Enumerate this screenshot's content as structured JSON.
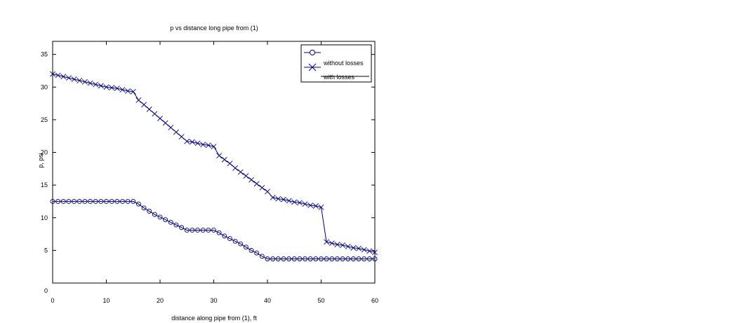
{
  "chart_data": {
    "type": "line",
    "title": "p vs distance long pipe from (1)",
    "xlabel": "distance along pipe from (1), ft",
    "ylabel": "p, psi",
    "xlim": [
      0,
      60
    ],
    "ylim": [
      0,
      37
    ],
    "xticks": [
      0,
      10,
      20,
      30,
      40,
      50,
      60
    ],
    "yticks": [
      0,
      5,
      10,
      15,
      20,
      25,
      30,
      35
    ],
    "grid": false,
    "legend_position": "top-right",
    "line_color": "#000080",
    "series": [
      {
        "name": "without losses",
        "marker": "circle",
        "x": [
          0,
          1,
          2,
          3,
          4,
          5,
          6,
          7,
          8,
          9,
          10,
          11,
          12,
          13,
          14,
          15,
          16,
          17,
          18,
          19,
          20,
          21,
          22,
          23,
          24,
          25,
          26,
          27,
          28,
          29,
          30,
          31,
          32,
          33,
          34,
          35,
          36,
          37,
          38,
          39,
          40,
          41,
          42,
          43,
          44,
          45,
          46,
          47,
          48,
          49,
          50,
          51,
          52,
          53,
          54,
          55,
          56,
          57,
          58,
          59,
          60
        ],
        "y": [
          12.5,
          12.5,
          12.5,
          12.5,
          12.5,
          12.5,
          12.5,
          12.5,
          12.5,
          12.5,
          12.5,
          12.5,
          12.5,
          12.5,
          12.5,
          12.5,
          12.1,
          11.5,
          11.0,
          10.5,
          10.1,
          9.7,
          9.3,
          8.9,
          8.5,
          8.1,
          8.1,
          8.1,
          8.1,
          8.1,
          8.1,
          7.7,
          7.2,
          6.8,
          6.4,
          6.0,
          5.5,
          5.0,
          4.6,
          4.1,
          3.7,
          3.7,
          3.7,
          3.7,
          3.7,
          3.7,
          3.7,
          3.7,
          3.7,
          3.7,
          3.7,
          3.7,
          3.7,
          3.7,
          3.7,
          3.7,
          3.7,
          3.7,
          3.7,
          3.7,
          3.7
        ]
      },
      {
        "name": "with losses",
        "marker": "cross",
        "x": [
          0,
          1,
          2,
          3,
          4,
          5,
          6,
          7,
          8,
          9,
          10,
          11,
          12,
          13,
          14,
          15,
          16,
          17,
          18,
          19,
          20,
          21,
          22,
          23,
          24,
          25,
          26,
          27,
          28,
          29,
          30,
          31,
          32,
          33,
          34,
          35,
          36,
          37,
          38,
          39,
          40,
          41,
          42,
          43,
          44,
          45,
          46,
          47,
          48,
          49,
          50,
          51,
          52,
          53,
          54,
          55,
          56,
          57,
          58,
          59,
          60
        ],
        "y": [
          32.0,
          31.8,
          31.6,
          31.4,
          31.2,
          31.0,
          30.8,
          30.6,
          30.4,
          30.2,
          30.0,
          29.9,
          29.8,
          29.6,
          29.4,
          29.3,
          28.0,
          27.3,
          26.6,
          25.9,
          25.2,
          24.5,
          23.8,
          23.1,
          22.4,
          21.7,
          21.6,
          21.4,
          21.2,
          21.1,
          20.9,
          19.5,
          18.9,
          18.3,
          17.6,
          17.0,
          16.4,
          15.8,
          15.2,
          14.6,
          14.0,
          13.1,
          12.9,
          12.8,
          12.6,
          12.4,
          12.3,
          12.1,
          11.9,
          11.8,
          11.6,
          6.3,
          6.1,
          5.9,
          5.8,
          5.6,
          5.4,
          5.3,
          5.1,
          4.9,
          4.7
        ]
      }
    ]
  }
}
